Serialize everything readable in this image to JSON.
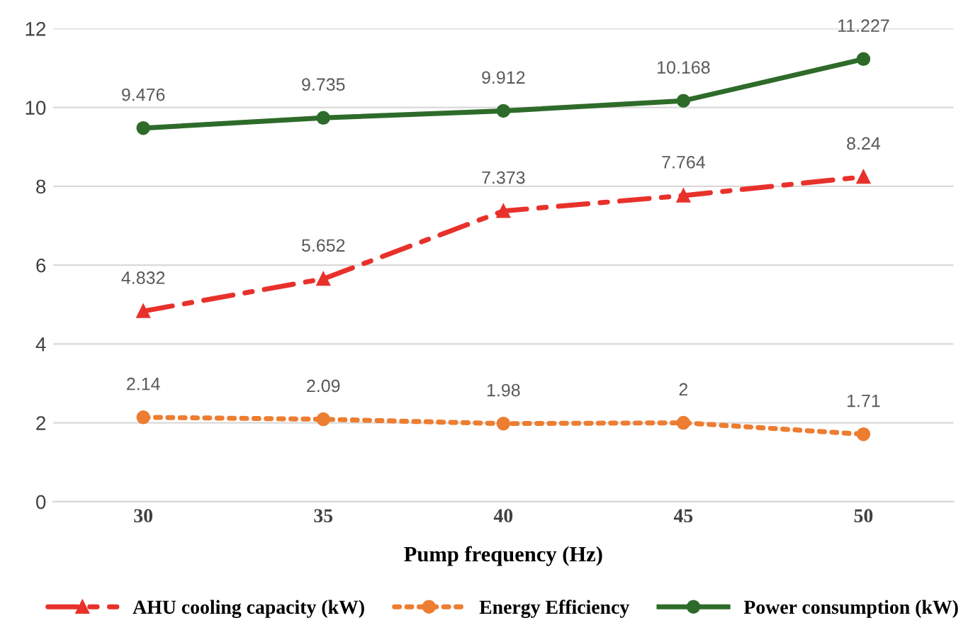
{
  "chart_data": {
    "type": "line",
    "xlabel": "Pump frequency (Hz)",
    "categories": [
      "30",
      "35",
      "40",
      "45",
      "50"
    ],
    "series": [
      {
        "name": "AHU cooling capacity (kW)",
        "color": "#e8312b",
        "marker": "triangle",
        "line_style": "dashed",
        "values": [
          4.832,
          5.652,
          7.373,
          7.764,
          8.24
        ]
      },
      {
        "name": "Energy Efficiency",
        "color": "#ed7d31",
        "marker": "circle",
        "line_style": "dotted",
        "values": [
          2.14,
          2.09,
          1.98,
          2,
          1.71
        ]
      },
      {
        "name": "Power consumption (kW)",
        "color": "#2e6b2a",
        "marker": "circle",
        "line_style": "solid",
        "values": [
          9.476,
          9.735,
          9.912,
          10.168,
          11.227
        ]
      }
    ],
    "ylim": [
      0,
      12
    ],
    "yticks": [
      0,
      2,
      4,
      6,
      8,
      10,
      12
    ],
    "grid": "y",
    "legend": "bottom",
    "data_labels": true
  }
}
